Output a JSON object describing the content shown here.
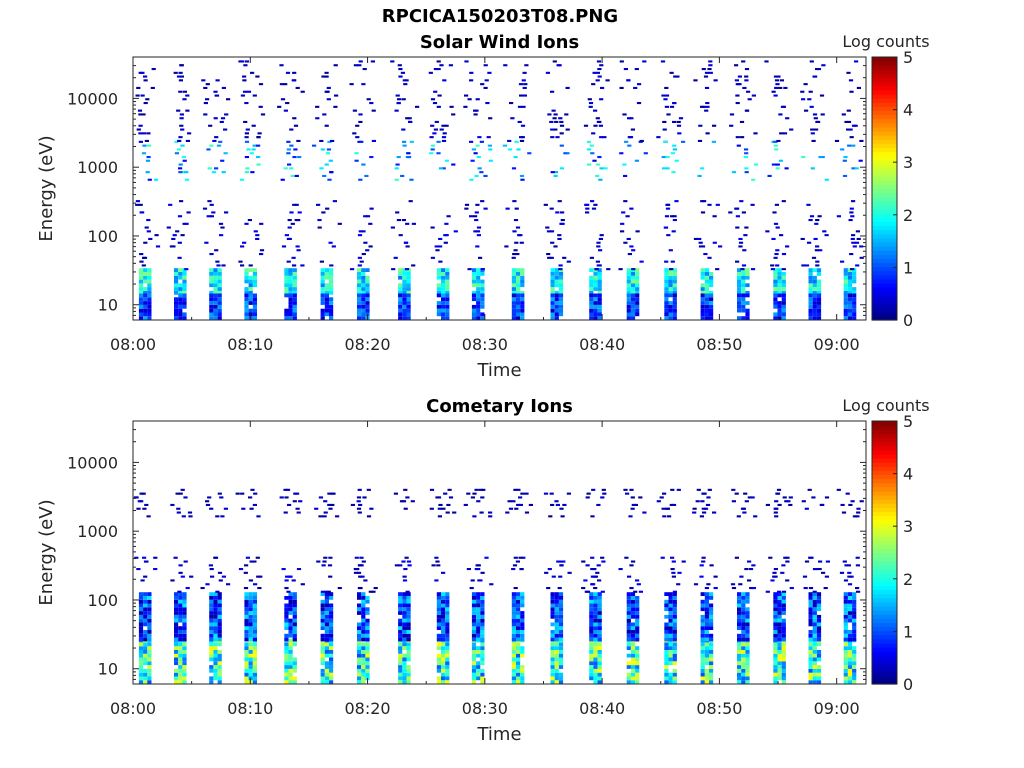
{
  "figure": {
    "title": "RPCICA150203T08.PNG"
  },
  "chart_data": [
    {
      "type": "heatmap",
      "title": "Solar Wind Ions",
      "xlabel": "Time",
      "ylabel": "Energy (eV)",
      "x_ticks": [
        "08:00",
        "08:10",
        "08:20",
        "08:30",
        "08:40",
        "08:50",
        "09:00"
      ],
      "y_ticks": [
        "10",
        "100",
        "1000",
        "10000"
      ],
      "y_scale": "log",
      "ylim": [
        6,
        40000
      ],
      "xlim": [
        "08:00",
        "09:02"
      ],
      "colorbar": {
        "label": "Log counts",
        "ticks": [
          "0",
          "1",
          "2",
          "3",
          "4",
          "5"
        ],
        "range": [
          0,
          5
        ],
        "colormap": "jet"
      },
      "bursts_minutes": [
        0.5,
        3.5,
        6.5,
        9.5,
        12.9,
        16.0,
        19.1,
        22.6,
        25.9,
        28.9,
        32.3,
        35.6,
        38.9,
        42.1,
        45.3,
        48.4,
        51.5,
        54.6,
        57.6,
        60.6
      ],
      "features": [
        {
          "e_min": 14,
          "e_max": 30,
          "log_counts": [
            1.2,
            2.5
          ]
        },
        {
          "e_min": 6,
          "e_max": 14,
          "log_counts": [
            0.3,
            1.5
          ]
        },
        {
          "e_min": 30,
          "e_max": 300,
          "log_counts": [
            0.1,
            0.6
          ]
        },
        {
          "e_min": 600,
          "e_max": 2200,
          "log_counts": [
            0.5,
            2.2
          ]
        },
        {
          "e_min": 2200,
          "e_max": 40000,
          "log_counts": [
            0.1,
            0.5
          ]
        }
      ]
    },
    {
      "type": "heatmap",
      "title": "Cometary Ions",
      "xlabel": "Time",
      "ylabel": "Energy (eV)",
      "x_ticks": [
        "08:00",
        "08:10",
        "08:20",
        "08:30",
        "08:40",
        "08:50",
        "09:00"
      ],
      "y_ticks": [
        "10",
        "100",
        "1000",
        "10000"
      ],
      "y_scale": "log",
      "ylim": [
        6,
        40000
      ],
      "xlim": [
        "08:00",
        "09:02"
      ],
      "colorbar": {
        "label": "Log counts",
        "ticks": [
          "0",
          "1",
          "2",
          "3",
          "4",
          "5"
        ],
        "range": [
          0,
          5
        ],
        "colormap": "jet"
      },
      "bursts_minutes": [
        0.5,
        3.5,
        6.5,
        9.5,
        12.9,
        16.0,
        19.1,
        22.6,
        25.9,
        28.9,
        32.3,
        35.6,
        38.9,
        42.1,
        45.3,
        48.4,
        51.5,
        54.6,
        57.6,
        60.6
      ],
      "features": [
        {
          "e_min": 6,
          "e_max": 25,
          "log_counts": [
            1.0,
            3.2
          ]
        },
        {
          "e_min": 25,
          "e_max": 120,
          "log_counts": [
            0.2,
            1.8
          ]
        },
        {
          "e_min": 120,
          "e_max": 400,
          "log_counts": [
            0.1,
            0.6
          ]
        },
        {
          "e_min": 1500,
          "e_max": 4000,
          "log_counts": [
            0.1,
            0.4
          ]
        }
      ]
    }
  ]
}
